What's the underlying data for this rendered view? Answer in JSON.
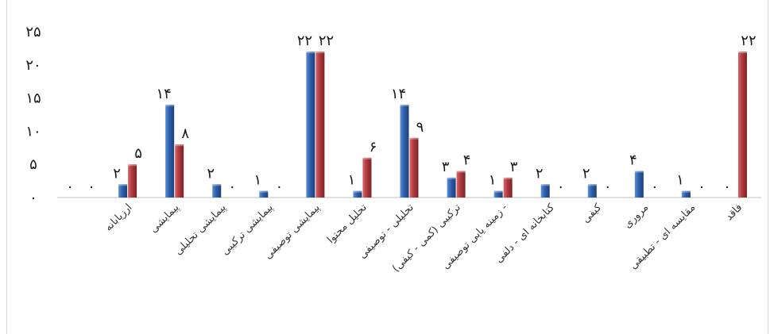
{
  "chart_data": {
    "type": "bar",
    "title": "",
    "xlabel": "",
    "ylabel": "",
    "ylim": [
      0,
      25
    ],
    "y_ticks": [
      "۰",
      "۵",
      "۱۰",
      "۱۵",
      "۲۰",
      "۲۵"
    ],
    "y_tick_values": [
      0,
      5,
      10,
      15,
      20,
      25
    ],
    "grid": false,
    "legend": "none",
    "categories": [
      "",
      "ارزیابانه",
      "پیمایشی",
      "پیمایشی تحلیلی",
      "پیمایشی ترکیبی",
      "پیمایشی توصیفی",
      "تحلیل محتوا",
      "تحلیلی - توصیفی",
      "ترکیبی (کمی - کیفی)",
      "زمینه یابی توصیفی -",
      "کتابخانه ای - دلفی",
      "کیفی",
      "مروری",
      "مقایسه ای - تطبیقی",
      "فاقد"
    ],
    "series": [
      {
        "color": "#2e5faa",
        "values": [
          0,
          2,
          14,
          2,
          1,
          22,
          1,
          14,
          3,
          1,
          2,
          2,
          4,
          1,
          0
        ],
        "labels": [
          "۰",
          "۲",
          "۱۴",
          "۲",
          "۱",
          "۲۲",
          "۱",
          "۱۴",
          "۳",
          "۱",
          "۲",
          "۲",
          "۴",
          "۱",
          "۰"
        ]
      },
      {
        "color": "#b03a3e",
        "values": [
          0,
          5,
          8,
          0,
          0,
          22,
          6,
          9,
          4,
          3,
          0,
          0,
          0,
          0,
          22
        ],
        "labels": [
          "۰",
          "۵",
          "۸",
          "۰",
          "۰",
          "۲۲",
          "۶",
          "۹",
          "۴",
          "۳",
          "۰",
          "۰",
          "۰",
          "۰",
          "۲۲"
        ]
      }
    ]
  }
}
